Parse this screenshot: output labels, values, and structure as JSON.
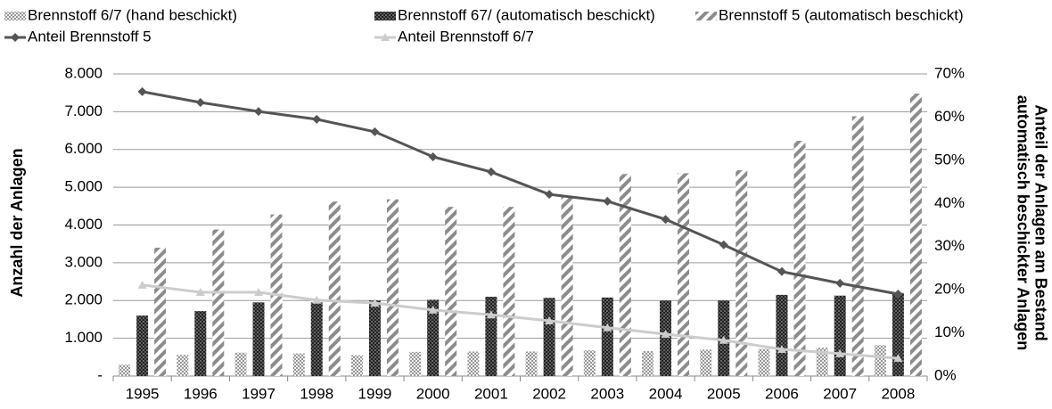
{
  "chart_data": {
    "type": "bar-line",
    "ylabel": "Anzahl der Anlagen",
    "y2label": [
      "Anteil der Anlagen am Bestand",
      "automatisch beschickter Anlagen"
    ],
    "categories": [
      "1995",
      "1996",
      "1997",
      "1998",
      "1999",
      "2000",
      "2001",
      "2002",
      "2003",
      "2004",
      "2005",
      "2006",
      "2007",
      "2008"
    ],
    "series": [
      {
        "name": "Brennstoff 6/7 (hand beschickt)",
        "type": "bar",
        "color": "#c8c8c8",
        "values": [
          300,
          560,
          620,
          600,
          550,
          640,
          650,
          650,
          680,
          660,
          700,
          720,
          750,
          820
        ]
      },
      {
        "name": "Brennstoff 67/ (automatisch beschickt)",
        "type": "bar",
        "color": "#333333",
        "values": [
          1600,
          1720,
          1950,
          1950,
          2000,
          2020,
          2100,
          2070,
          2080,
          2000,
          2000,
          2150,
          2130,
          2200
        ]
      },
      {
        "name": "Brennstoff 5 (automatisch beschickt)",
        "type": "bar",
        "color": "#8c8c8c",
        "values": [
          3400,
          3880,
          4280,
          4620,
          4680,
          4480,
          4480,
          4750,
          5350,
          5370,
          5450,
          6230,
          6880,
          7480
        ]
      },
      {
        "name": "Anteil Brennstoff 5",
        "type": "line",
        "axis": "y2",
        "color": "#555555",
        "marker": "diamond",
        "values": [
          65.9,
          63.4,
          61.3,
          59.5,
          56.6,
          50.8,
          47.3,
          42.1,
          40.5,
          36.3,
          30.4,
          24.2,
          21.5,
          19.0
        ]
      },
      {
        "name": "Anteil Brennstoff 6/7",
        "type": "line",
        "axis": "y2",
        "color": "#cccccc",
        "marker": "triangle",
        "values": [
          21.1,
          19.4,
          19.4,
          17.6,
          16.9,
          15.3,
          14.2,
          12.8,
          11.2,
          9.7,
          8.3,
          6.2,
          5.2,
          4.1
        ]
      }
    ],
    "ylim": [
      0,
      8000
    ],
    "yticks": [
      {
        "value": 0,
        "label": "-"
      },
      {
        "value": 1000,
        "label": "1.000"
      },
      {
        "value": 2000,
        "label": "2.000"
      },
      {
        "value": 3000,
        "label": "3.000"
      },
      {
        "value": 4000,
        "label": "4.000"
      },
      {
        "value": 5000,
        "label": "5.000"
      },
      {
        "value": 6000,
        "label": "6.000"
      },
      {
        "value": 7000,
        "label": "7.000"
      },
      {
        "value": 8000,
        "label": "8.000"
      }
    ],
    "y2lim": [
      0,
      70
    ],
    "y2ticks": [
      {
        "value": 0,
        "label": "0%"
      },
      {
        "value": 10,
        "label": "10%"
      },
      {
        "value": 20,
        "label": "20%"
      },
      {
        "value": 30,
        "label": "30%"
      },
      {
        "value": 40,
        "label": "40%"
      },
      {
        "value": 50,
        "label": "50%"
      },
      {
        "value": 60,
        "label": "60%"
      },
      {
        "value": 70,
        "label": "70%"
      }
    ],
    "grid": true,
    "legend": "top"
  }
}
